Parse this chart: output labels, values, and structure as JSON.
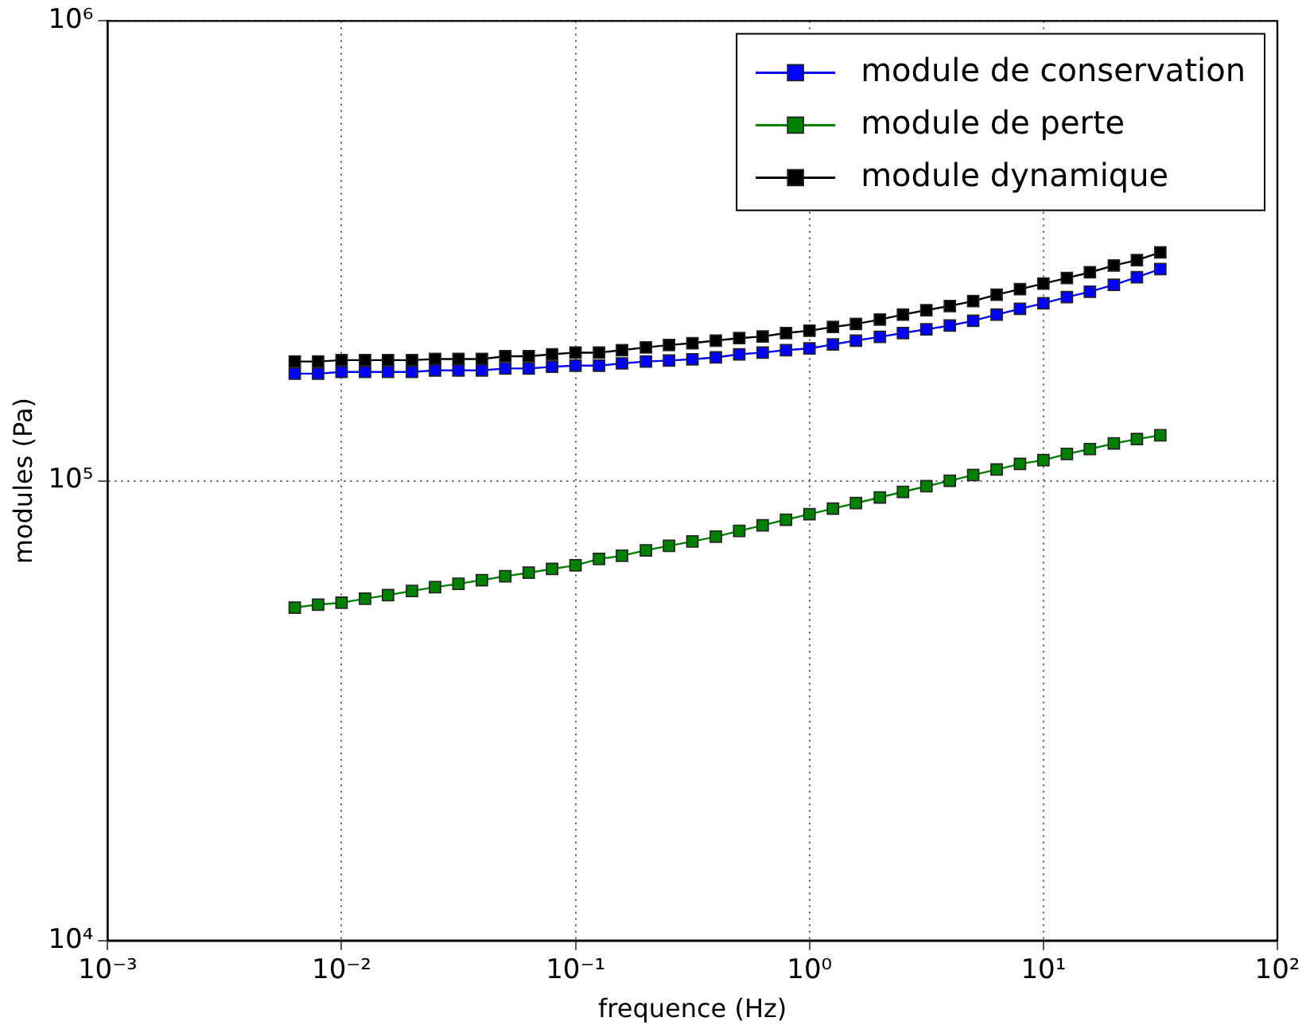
{
  "chart_data": {
    "type": "line",
    "xlabel": "frequence (Hz)",
    "ylabel": "modules (Pa)",
    "x": [
      0.00631,
      0.00794,
      0.01,
      0.0126,
      0.0158,
      0.02,
      0.0251,
      0.0316,
      0.0398,
      0.0501,
      0.0631,
      0.0794,
      0.1,
      0.126,
      0.158,
      0.2,
      0.251,
      0.316,
      0.398,
      0.501,
      0.631,
      0.794,
      1,
      1.26,
      1.58,
      2,
      2.51,
      3.16,
      3.98,
      5.01,
      6.31,
      7.94,
      10,
      12.6,
      15.8,
      20,
      25.1,
      31.6
    ],
    "series": [
      {
        "name": "module de conservation",
        "color": "#0000ff",
        "values": [
          171000,
          171000,
          172500,
          172500,
          172500,
          172500,
          173800,
          173800,
          173800,
          175500,
          175500,
          177000,
          178000,
          178000,
          180000,
          181700,
          182600,
          183800,
          185500,
          188400,
          190000,
          192400,
          194000,
          198000,
          201800,
          205600,
          209600,
          213500,
          217500,
          222800,
          229800,
          236600,
          243300,
          250800,
          257800,
          266800,
          277100,
          288700
        ]
      },
      {
        "name": "module de perte",
        "color": "#008000",
        "values": [
          53000,
          53800,
          54300,
          55400,
          56400,
          57600,
          58700,
          59700,
          60800,
          62000,
          63100,
          64300,
          65500,
          67600,
          68700,
          70600,
          72200,
          73800,
          75600,
          77800,
          80000,
          82300,
          84600,
          87000,
          89400,
          92000,
          94600,
          97300,
          100000,
          102900,
          105800,
          108800,
          110900,
          114400,
          117200,
          120600,
          123200,
          125600
        ]
      },
      {
        "name": "module dynamique",
        "color": "#000000",
        "values": [
          181700,
          181700,
          183000,
          183000,
          183000,
          183000,
          184000,
          184000,
          184000,
          186600,
          186600,
          188400,
          190000,
          190000,
          192400,
          195000,
          197400,
          199200,
          201800,
          204300,
          206000,
          209600,
          212000,
          216000,
          219300,
          224200,
          229800,
          235000,
          240000,
          246000,
          254000,
          261000,
          268500,
          276000,
          284000,
          294000,
          302000,
          314000
        ]
      }
    ],
    "log": "xy",
    "xlim": [
      0.001,
      100
    ],
    "ylim": [
      10000,
      1000000
    ],
    "xticks": [
      {
        "value": 0.001,
        "label": "10⁻³"
      },
      {
        "value": 0.01,
        "label": "10⁻²"
      },
      {
        "value": 0.1,
        "label": "10⁻¹"
      },
      {
        "value": 1,
        "label": "10⁰"
      },
      {
        "value": 10,
        "label": "10¹"
      },
      {
        "value": 100,
        "label": "10²"
      }
    ],
    "yticks": [
      {
        "value": 10000,
        "label": "10⁴"
      },
      {
        "value": 100000,
        "label": "10⁵"
      },
      {
        "value": 1000000,
        "label": "10⁶"
      }
    ],
    "grid": true,
    "legend": "top right",
    "marker": "square",
    "line_style": "solid"
  }
}
